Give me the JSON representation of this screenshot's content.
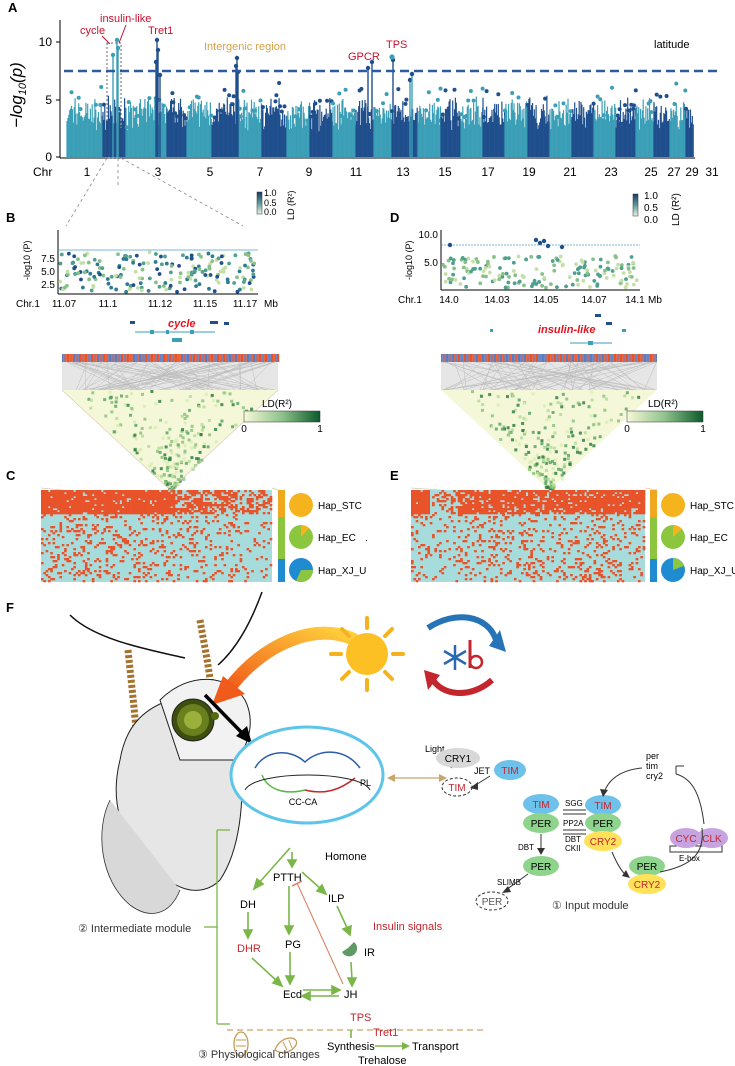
{
  "panel_labels": {
    "A": "A",
    "B": "B",
    "C": "C",
    "D": "D",
    "E": "E",
    "F": "F"
  },
  "colors": {
    "chr_light": "#3b9fb7",
    "chr_dark": "#1f4f8c",
    "threshold": "#2d5aa0",
    "red_label": "#c8102e",
    "orange_label": "#d4a24a",
    "hap_red": "#e8532a",
    "hap_blue": "#a6dcdc",
    "ld_low": "#f4f8d8",
    "ld_high": "#0b5a2b",
    "arrow_green": "#7ab648"
  },
  "panelA": {
    "ylabel": "−log10(p)",
    "ylabel_tex": "−log",
    "ylabel_sub": "10",
    "ylabel_tail": "(p)",
    "yticks": [
      "10",
      "5",
      "0"
    ],
    "chr_label": "Chr",
    "xticks": [
      "1",
      "3",
      "5",
      "7",
      "9",
      "11",
      "13",
      "15",
      "17",
      "19",
      "21",
      "23",
      "25",
      "27",
      "29",
      "31"
    ],
    "annotations": {
      "cycle": "cycle",
      "insulin": "insulin-like",
      "tret1": "Tret1",
      "intergenic": "Intergenic region",
      "gpcr": "GPCR",
      "tps": "TPS"
    },
    "trait": "latitude"
  },
  "ld_scale_small": {
    "ticks": [
      "1.0",
      "0.5",
      "0.0"
    ],
    "label": "LD (R²)"
  },
  "panelB": {
    "ylabel": "-log10 (P)",
    "yticks": [
      "7.5",
      "5.0",
      "2.5"
    ],
    "chr": "Chr.1",
    "xticks": [
      "11.07",
      "11.1",
      "11.12",
      "11.15",
      "11.17"
    ],
    "unit": "Mb",
    "gene": "cycle"
  },
  "panelD": {
    "ylabel": "-log10 (P)",
    "yticks": [
      "10.0",
      "5.0"
    ],
    "chr": "Chr.1",
    "xticks": [
      "14.0",
      "14.03",
      "14.05",
      "14.07",
      "14.1"
    ],
    "unit": "Mb",
    "gene": "insulin-like"
  },
  "ld_scale_large": {
    "label": "LD(R²)",
    "min": "0",
    "max": "1"
  },
  "haplotypes": [
    "Hap_STC",
    "Hap_EC",
    "Hap_XJ_U"
  ],
  "panelC_dot": ".",
  "panelF": {
    "light": "Light",
    "cry1": "CRY1",
    "jet": "JET",
    "tim": "TIM",
    "per": "PER",
    "cry2": "CRY2",
    "sgg": "SGG",
    "pp2a": "PP2A",
    "dbt": "DBT",
    "ckii": "CKII",
    "slimb": "SLIMB",
    "cyc": "CYC",
    "clk": "CLK",
    "ebox": "E-box",
    "genes": [
      "per",
      "tim",
      "cry2"
    ],
    "input_module": "① Input module",
    "intermediate_module": "② Intermediate module",
    "physio": "③ Physiological changes",
    "brain": {
      "pl": "PL",
      "ccca": "CC-CA"
    },
    "homone": "Homone",
    "dh": "DH",
    "dhr": "DHR",
    "ptth": "PTTH",
    "ilp": "ILP",
    "pg": "PG",
    "ir": "IR",
    "ecd": "Ecd",
    "jh": "JH",
    "insulin_signals": "Insulin signals",
    "tps": "TPS",
    "tret1": "Tret1",
    "synthesis": "Synthesis",
    "transport": "Transport",
    "trehalose": "Trehalose"
  }
}
